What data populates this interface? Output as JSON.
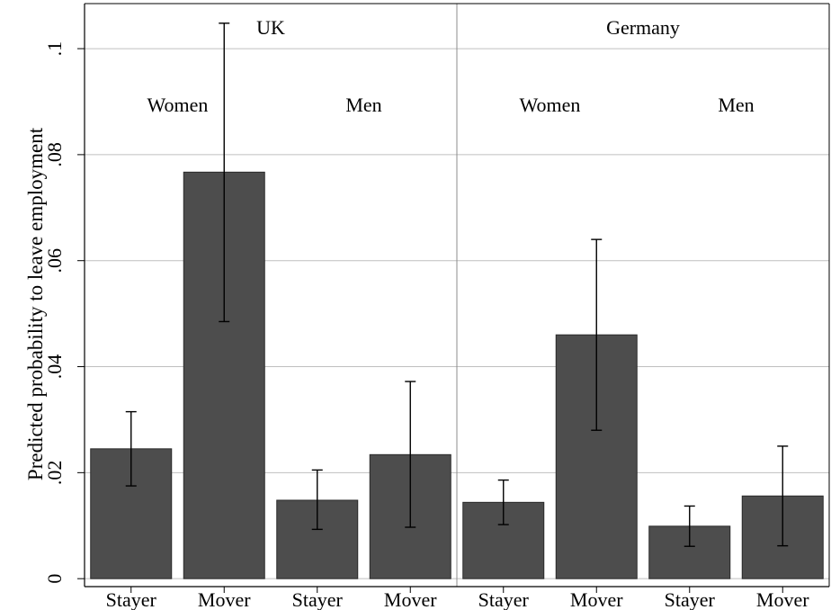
{
  "chart_data": {
    "type": "bar",
    "ylabel": "Predicted probability to leave employment",
    "xlabel": "",
    "ylim": [
      -0.0015,
      0.1085
    ],
    "yticks": [
      0,
      0.02,
      0.04,
      0.06,
      0.08,
      0.1
    ],
    "ytick_labels": [
      "0",
      ".02",
      ".04",
      ".06",
      ".08",
      ".1"
    ],
    "grid": true,
    "bar_color": "#4d4d4d",
    "grid_color": "#bfbfbf",
    "panels": [
      {
        "label": "UK",
        "groups": [
          {
            "label": "Women",
            "bars": [
              {
                "category": "Stayer",
                "value": 0.0245,
                "ci_low": 0.0175,
                "ci_high": 0.0315
              },
              {
                "category": "Mover",
                "value": 0.0767,
                "ci_low": 0.0485,
                "ci_high": 0.1048
              }
            ]
          },
          {
            "label": "Men",
            "bars": [
              {
                "category": "Stayer",
                "value": 0.0148,
                "ci_low": 0.0093,
                "ci_high": 0.0205
              },
              {
                "category": "Mover",
                "value": 0.0234,
                "ci_low": 0.0097,
                "ci_high": 0.0372
              }
            ]
          }
        ]
      },
      {
        "label": "Germany",
        "groups": [
          {
            "label": "Women",
            "bars": [
              {
                "category": "Stayer",
                "value": 0.0144,
                "ci_low": 0.0102,
                "ci_high": 0.0186
              },
              {
                "category": "Mover",
                "value": 0.046,
                "ci_low": 0.028,
                "ci_high": 0.064
              }
            ]
          },
          {
            "label": "Men",
            "bars": [
              {
                "category": "Stayer",
                "value": 0.0099,
                "ci_low": 0.0061,
                "ci_high": 0.0137
              },
              {
                "category": "Mover",
                "value": 0.0156,
                "ci_low": 0.0062,
                "ci_high": 0.025
              }
            ]
          }
        ]
      }
    ]
  }
}
